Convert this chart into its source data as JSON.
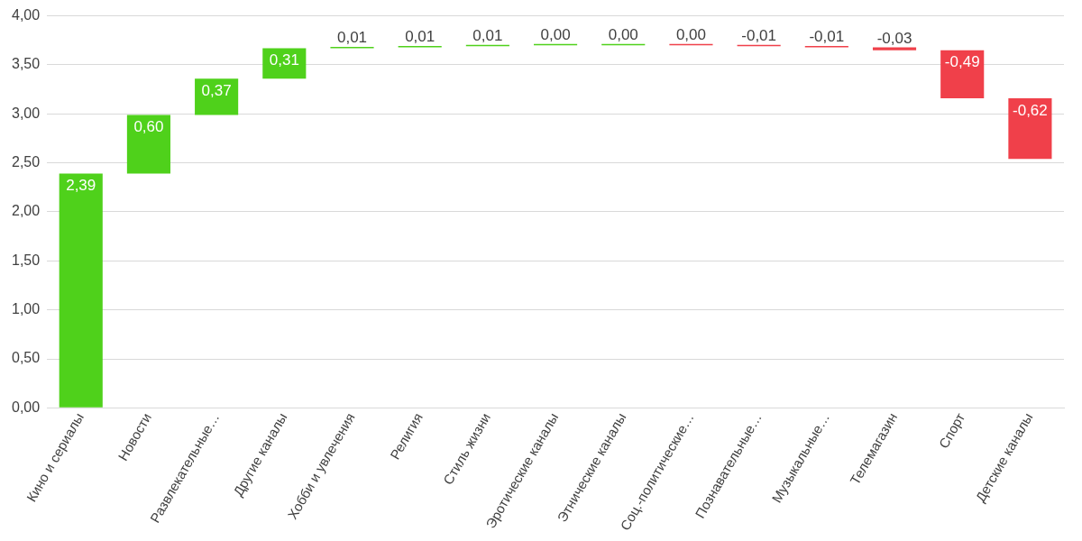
{
  "chart_data": {
    "type": "bar",
    "categories": [
      "Кино и сериалы",
      "Новости",
      "Развлекательные…",
      "Другие каналы",
      "Хобби и увлечения",
      "Религия",
      "Стиль жизни",
      "Эротические каналы",
      "Этнические каналы",
      "Соц.-политические…",
      "Познавательные…",
      "Музыкальные…",
      "Телемагазин",
      "Спорт",
      "Детские каналы"
    ],
    "values": [
      2.39,
      0.6,
      0.37,
      0.31,
      0.01,
      0.01,
      0.01,
      0.0,
      0.0,
      0.0,
      -0.01,
      -0.01,
      -0.03,
      -0.49,
      -0.62
    ],
    "base": [
      0,
      2.39,
      2.99,
      3.36,
      3.67,
      3.68,
      3.69,
      3.7,
      3.7,
      3.7,
      3.7,
      3.69,
      3.68,
      3.65,
      3.16
    ],
    "colors": [
      "#4fd11b",
      "#4fd11b",
      "#4fd11b",
      "#4fd11b",
      "#4fd11b",
      "#4fd11b",
      "#4fd11b",
      "#4fd11b",
      "#4fd11b",
      "#f0404a",
      "#f0404a",
      "#f0404a",
      "#f0404a",
      "#f0404a",
      "#f0404a"
    ],
    "value_labels": [
      "2,39",
      "0,60",
      "0,37",
      "0,31",
      "0,01",
      "0,01",
      "0,01",
      "0,00",
      "0,00",
      "0,00",
      "-0,01",
      "-0,01",
      "-0,03",
      "-0,49",
      "-0,62"
    ],
    "ylim": [
      0,
      4
    ],
    "yticks": [
      {
        "value": 0,
        "label": "0,00"
      },
      {
        "value": 0.5,
        "label": "0,50"
      },
      {
        "value": 1,
        "label": "1,00"
      },
      {
        "value": 1.5,
        "label": "1,50"
      },
      {
        "value": 2,
        "label": "2,00"
      },
      {
        "value": 2.5,
        "label": "2,50"
      },
      {
        "value": 3,
        "label": "3,00"
      },
      {
        "value": 3.5,
        "label": "3,50"
      },
      {
        "value": 4,
        "label": "4,00"
      }
    ],
    "grid": "y",
    "legend": false
  }
}
